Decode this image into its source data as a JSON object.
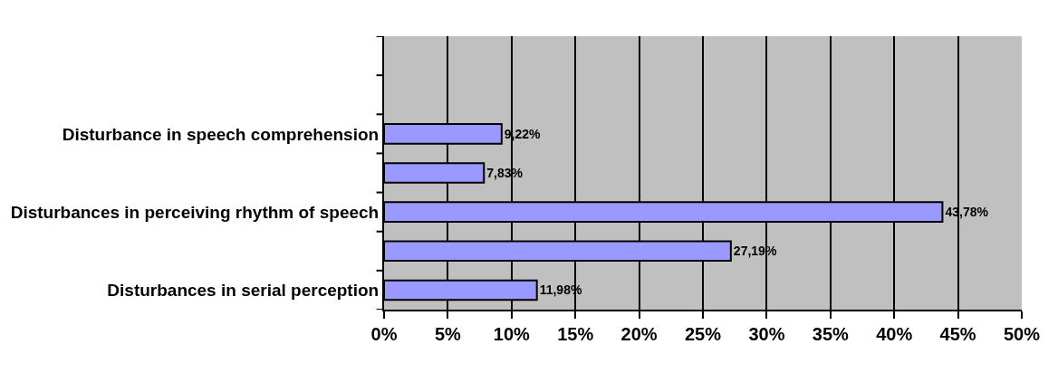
{
  "chart_data": {
    "type": "bar",
    "orientation": "horizontal",
    "categories": [
      null,
      null,
      "Disturbance in speech comprehension",
      null,
      "Disturbances in perceiving rhythm of speech",
      null,
      "Disturbances in serial perception"
    ],
    "values": [
      null,
      null,
      9.22,
      7.83,
      43.78,
      27.19,
      11.98
    ],
    "value_labels": [
      null,
      null,
      "9,22%",
      "7,83%",
      "43,78%",
      "27,19%",
      "11,98%"
    ],
    "color": "#9999ff",
    "xlim": [
      0,
      50
    ],
    "xticks": [
      {
        "value": 0,
        "label": "0%"
      },
      {
        "value": 5,
        "label": "5%"
      },
      {
        "value": 10,
        "label": "10%"
      },
      {
        "value": 15,
        "label": "15%"
      },
      {
        "value": 20,
        "label": "20%"
      },
      {
        "value": 25,
        "label": "25%"
      },
      {
        "value": 30,
        "label": "30%"
      },
      {
        "value": 35,
        "label": "35%"
      },
      {
        "value": 40,
        "label": "40%"
      },
      {
        "value": 45,
        "label": "45%"
      },
      {
        "value": 50,
        "label": "50%"
      }
    ],
    "grid": "x"
  }
}
